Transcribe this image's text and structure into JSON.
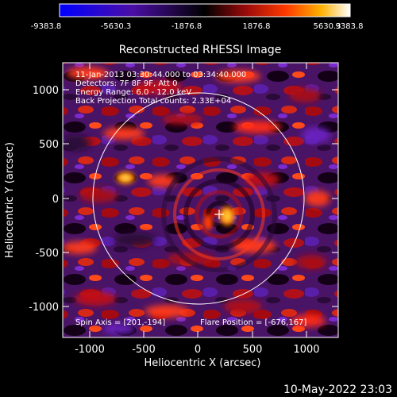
{
  "colorbar": {
    "ticks": [
      "-9383.8",
      "-5630.3",
      "-1876.8",
      "1876.8",
      "5630.3",
      "9383.8"
    ],
    "colors": {
      "neg_end": "#0000ff",
      "neg_mid": "#4b0ea6",
      "zero": "#000000",
      "pos_low": "#9a0a0a",
      "pos_mid": "#ff3a00",
      "pos_high": "#ffb200",
      "pos_end": "#ffffff"
    }
  },
  "plot": {
    "title": "Reconstructed RHESSI Image",
    "xlabel": "Heliocentric X (arcsec)",
    "ylabel": "Heliocentric Y (arcsec)",
    "x_ticks": [
      "-1000",
      "-500",
      "0",
      "500",
      "1000"
    ],
    "y_ticks": [
      "1000",
      "500",
      "0",
      "-500",
      "-1000"
    ],
    "info_lines": [
      "11-Jan-2013 03:30:44.000 to 03:34:40.000",
      "Detectors: 7F 8F 9F, Att 0",
      "Energy Range: 6.0 - 12.0 keV",
      "Back Projection     Total counts: 2.33E+04"
    ],
    "spin_axis": "Spin Axis = [201,-194]",
    "flare_position": "Flare Position = [-676,167]",
    "limb_color": "#ffffff",
    "marker_color": "#ffffff"
  },
  "footer": {
    "timestamp": "10-May-2022 23:03"
  }
}
